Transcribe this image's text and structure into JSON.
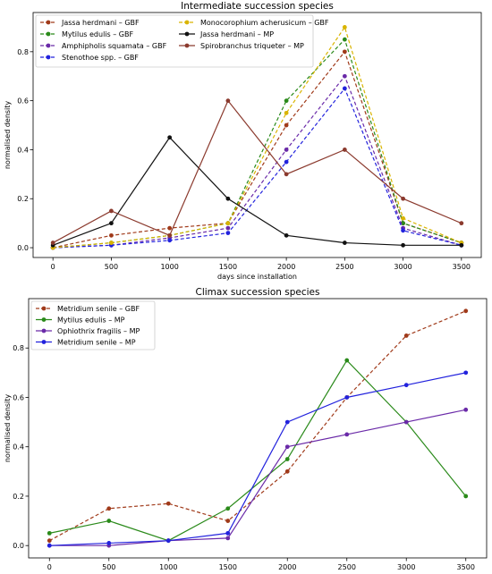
{
  "chart_data": [
    {
      "type": "line",
      "title": "Intermediate succession species",
      "xlabel": "days since installation",
      "ylabel": "normalised density",
      "x": [
        0,
        500,
        1000,
        1500,
        2000,
        2500,
        3000,
        3500
      ],
      "xlim": [
        -170,
        3670
      ],
      "ylim": [
        -0.04,
        0.96
      ],
      "xticks": [
        "0",
        "500",
        "1000",
        "1500",
        "2000",
        "2500",
        "3000",
        "3500"
      ],
      "yticks": [
        "0.0",
        "0.2",
        "0.4",
        "0.6",
        "0.8"
      ],
      "grid": false,
      "legend_position": "top-left, two columns",
      "series": [
        {
          "name": "Jassa herdmani – GBF",
          "color": "#a03a1a",
          "style": "dashed",
          "values": [
            0.0,
            0.05,
            0.08,
            0.1,
            0.5,
            0.8,
            0.1,
            0.02
          ]
        },
        {
          "name": "Mytilus edulis – GBF",
          "color": "#2a8a1a",
          "style": "dashed",
          "values": [
            0.0,
            0.02,
            0.05,
            0.1,
            0.6,
            0.85,
            0.1,
            0.02
          ]
        },
        {
          "name": "Amphipholis squamata – GBF",
          "color": "#6a2aa8",
          "style": "dashed",
          "values": [
            0.0,
            0.01,
            0.04,
            0.08,
            0.4,
            0.7,
            0.08,
            0.01
          ]
        },
        {
          "name": "Stenothoe spp. – GBF",
          "color": "#2222dd",
          "style": "dashed",
          "values": [
            0.0,
            0.01,
            0.03,
            0.06,
            0.35,
            0.65,
            0.07,
            0.01
          ]
        },
        {
          "name": "Monocorophium acherusicum – GBF",
          "color": "#d9b400",
          "style": "dashed",
          "values": [
            0.0,
            0.02,
            0.05,
            0.1,
            0.55,
            0.9,
            0.12,
            0.02
          ]
        },
        {
          "name": "Jassa herdmani – MP",
          "color": "#111111",
          "style": "solid",
          "values": [
            0.01,
            0.1,
            0.45,
            0.2,
            0.05,
            0.02,
            0.01,
            0.01
          ]
        },
        {
          "name": "Spirobranchus triqueter – MP",
          "color": "#8b3a2e",
          "style": "solid",
          "values": [
            0.02,
            0.15,
            0.05,
            0.6,
            0.3,
            0.4,
            0.2,
            0.1
          ]
        }
      ]
    },
    {
      "type": "line",
      "title": "Climax succession species",
      "xlabel": "days since installation",
      "ylabel": "normalised density",
      "x": [
        0,
        500,
        1000,
        1500,
        2000,
        2500,
        3000,
        3500
      ],
      "xlim": [
        -175,
        3675
      ],
      "ylim": [
        -0.05,
        1.0
      ],
      "xticks": [
        "0",
        "500",
        "1000",
        "1500",
        "2000",
        "2500",
        "3000",
        "3500"
      ],
      "yticks": [
        "0.0",
        "0.2",
        "0.4",
        "0.6",
        "0.8"
      ],
      "grid": false,
      "legend_position": "top-left",
      "series": [
        {
          "name": "Metridium senile – GBF",
          "color": "#a03a1a",
          "style": "dashed",
          "values": [
            0.02,
            0.15,
            0.17,
            0.1,
            0.3,
            0.6,
            0.85,
            0.95
          ]
        },
        {
          "name": "Mytilus edulis – MP",
          "color": "#2a8a1a",
          "style": "solid",
          "values": [
            0.05,
            0.1,
            0.02,
            0.15,
            0.35,
            0.75,
            0.5,
            0.2
          ]
        },
        {
          "name": "Ophiothrix fragilis – MP",
          "color": "#6a2aa8",
          "style": "solid",
          "values": [
            0.0,
            0.0,
            0.02,
            0.03,
            0.4,
            0.45,
            0.5,
            0.55
          ]
        },
        {
          "name": "Metridium senile – MP",
          "color": "#2222dd",
          "style": "solid",
          "values": [
            0.0,
            0.01,
            0.02,
            0.05,
            0.5,
            0.6,
            0.65,
            0.7
          ]
        }
      ]
    }
  ]
}
